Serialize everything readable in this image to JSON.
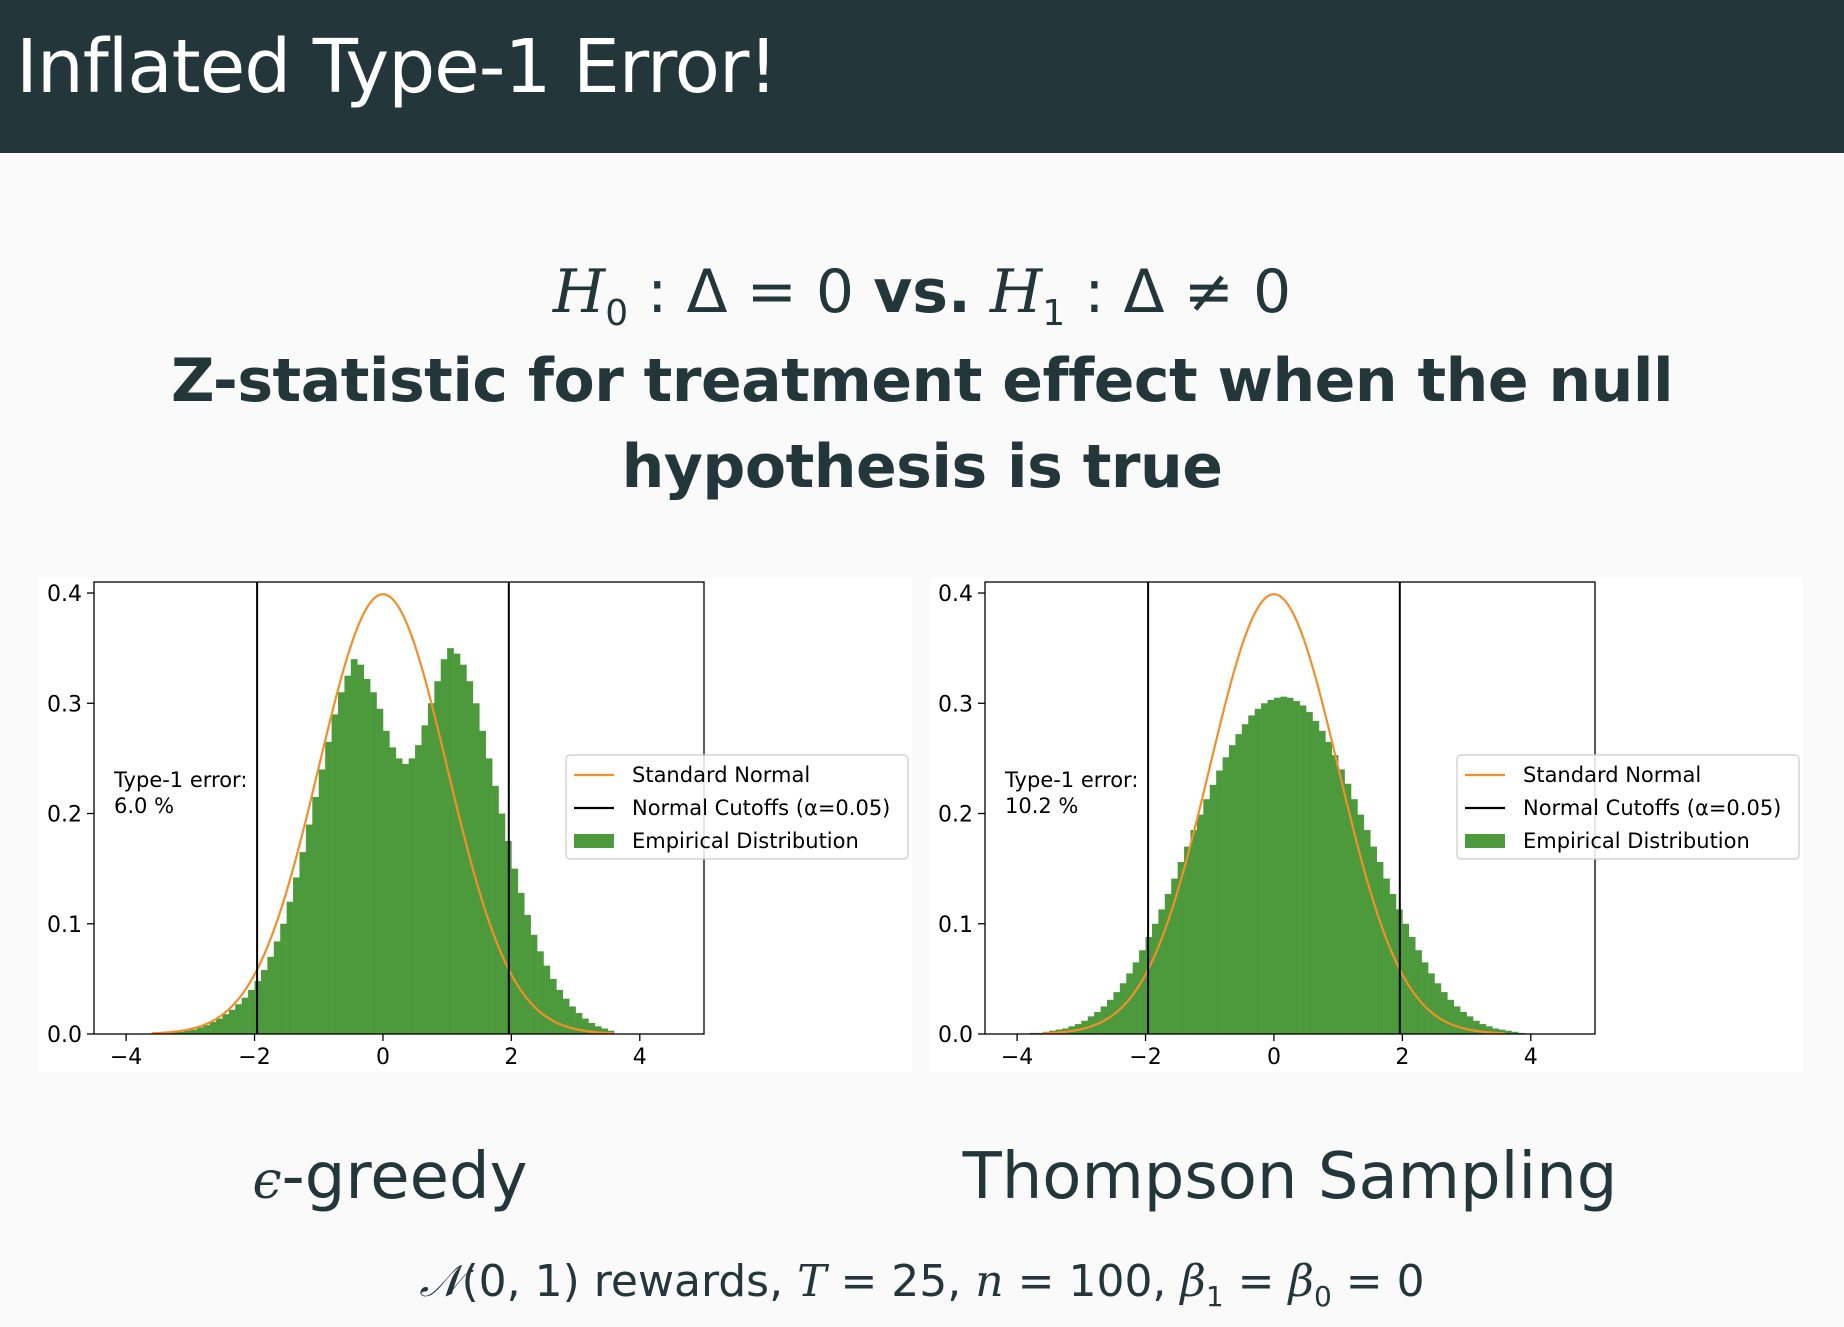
{
  "header": {
    "title": "Inflated Type-1 Error!"
  },
  "hypothesis": {
    "h0_sym": "H",
    "h0_sub": "0",
    "h0_rest": " : Δ = 0 ",
    "vs": "vs.",
    "h1_sym": " H",
    "h1_sub": "1",
    "h1_rest": " : Δ ≠ 0"
  },
  "subtitle": "Z-statistic for treatment effect when the null hypothesis is true",
  "captions": {
    "left_eps": "ϵ",
    "left_rest": "-greedy",
    "right": "Thompson Sampling"
  },
  "footer": {
    "n_sym": "𝒩",
    "rewards": "(0, 1) rewards, ",
    "T": "T",
    "T_rest": " = 25, ",
    "n": "n",
    "n_rest": " = 100, ",
    "b1": "β",
    "b1_sub": "1",
    "eq": " = ",
    "b0": "β",
    "b0_sub": "0",
    "end": " = 0"
  },
  "colors": {
    "normal": "#f28e2b",
    "cutoff": "#000000",
    "empirical": "#4d9a3c"
  },
  "chart_data": [
    {
      "type": "bar",
      "xlim": [
        -4.5,
        5.0
      ],
      "ylim": [
        0,
        0.41
      ],
      "xticks": [
        "−4",
        "−2",
        "0",
        "2",
        "4"
      ],
      "xtick_values": [
        -4,
        -2,
        0,
        2,
        4
      ],
      "yticks": [
        "0.0",
        "0.1",
        "0.2",
        "0.3",
        "0.4"
      ],
      "ytick_values": [
        0,
        0.1,
        0.2,
        0.3,
        0.4
      ],
      "legend": [
        "Standard Normal",
        "Normal Cutoffs (α=0.05)",
        "Empirical Distribution"
      ],
      "legend_position": "right",
      "annotation": [
        "Type-1 error:",
        "6.0 %"
      ],
      "cutoffs": [
        -1.96,
        1.96
      ],
      "bin_width": 0.1,
      "bin_start": -3.5,
      "histogram": [
        0.001,
        0.001,
        0.002,
        0.002,
        0.003,
        0.004,
        0.006,
        0.008,
        0.011,
        0.014,
        0.018,
        0.022,
        0.027,
        0.033,
        0.04,
        0.048,
        0.058,
        0.07,
        0.084,
        0.1,
        0.12,
        0.142,
        0.165,
        0.19,
        0.215,
        0.24,
        0.265,
        0.29,
        0.31,
        0.325,
        0.34,
        0.335,
        0.322,
        0.31,
        0.295,
        0.275,
        0.26,
        0.25,
        0.245,
        0.25,
        0.262,
        0.28,
        0.3,
        0.32,
        0.34,
        0.35,
        0.345,
        0.335,
        0.32,
        0.3,
        0.275,
        0.25,
        0.225,
        0.2,
        0.175,
        0.15,
        0.128,
        0.108,
        0.09,
        0.075,
        0.062,
        0.05,
        0.04,
        0.032,
        0.025,
        0.019,
        0.014,
        0.01,
        0.007,
        0.005,
        0.003
      ]
    },
    {
      "type": "bar",
      "xlim": [
        -4.5,
        5.0
      ],
      "ylim": [
        0,
        0.41
      ],
      "xticks": [
        "−4",
        "−2",
        "0",
        "2",
        "4"
      ],
      "xtick_values": [
        -4,
        -2,
        0,
        2,
        4
      ],
      "yticks": [
        "0.0",
        "0.1",
        "0.2",
        "0.3",
        "0.4"
      ],
      "ytick_values": [
        0,
        0.1,
        0.2,
        0.3,
        0.4
      ],
      "legend": [
        "Standard Normal",
        "Normal Cutoffs (α=0.05)",
        "Empirical Distribution"
      ],
      "legend_position": "right",
      "annotation": [
        "Type-1 error:",
        "10.2 %"
      ],
      "cutoffs": [
        -1.96,
        1.96
      ],
      "bin_width": 0.1,
      "bin_start": -3.8,
      "histogram": [
        0.001,
        0.001,
        0.002,
        0.003,
        0.004,
        0.005,
        0.007,
        0.009,
        0.012,
        0.016,
        0.02,
        0.025,
        0.031,
        0.038,
        0.046,
        0.055,
        0.065,
        0.076,
        0.088,
        0.1,
        0.113,
        0.127,
        0.141,
        0.156,
        0.17,
        0.185,
        0.199,
        0.213,
        0.226,
        0.239,
        0.251,
        0.262,
        0.272,
        0.281,
        0.289,
        0.295,
        0.3,
        0.303,
        0.305,
        0.306,
        0.305,
        0.302,
        0.298,
        0.292,
        0.284,
        0.275,
        0.265,
        0.253,
        0.24,
        0.227,
        0.213,
        0.199,
        0.185,
        0.17,
        0.156,
        0.141,
        0.127,
        0.113,
        0.1,
        0.088,
        0.076,
        0.065,
        0.055,
        0.046,
        0.038,
        0.031,
        0.025,
        0.02,
        0.016,
        0.012,
        0.009,
        0.007,
        0.005,
        0.004,
        0.003,
        0.002,
        0.001
      ]
    }
  ]
}
